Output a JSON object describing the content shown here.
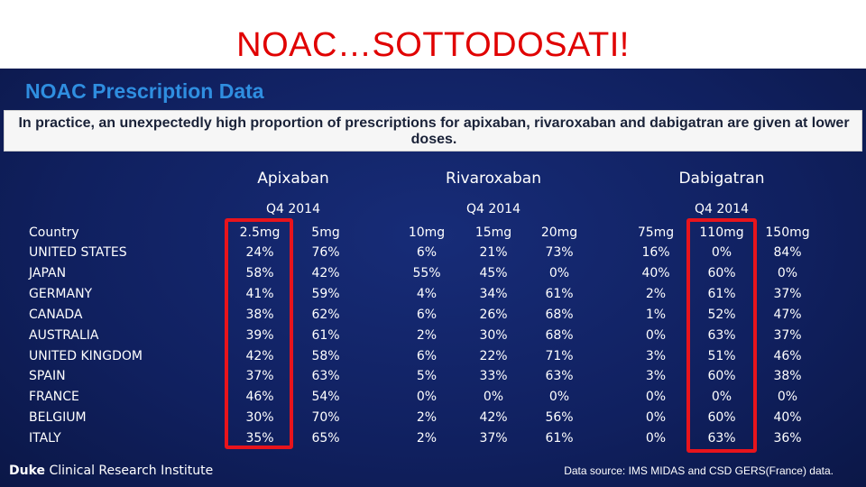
{
  "slide_title": "NOAC…SOTTODOSATI!",
  "panel_title": "NOAC Prescription Data",
  "callout": "In practice, an unexpectedly high proportion of prescriptions for apixaban, rivaroxaban and dabigatran are given at lower doses.",
  "drugs": [
    {
      "name": "Apixaban",
      "period": "Q4 2014",
      "doses": [
        "2.5mg",
        "5mg"
      ]
    },
    {
      "name": "Rivaroxaban",
      "period": "Q4 2014",
      "doses": [
        "10mg",
        "15mg",
        "20mg"
      ]
    },
    {
      "name": "Dabigatran",
      "period": "Q4 2014",
      "doses": [
        "75mg",
        "110mg",
        "150mg"
      ]
    }
  ],
  "country_header": "Country",
  "rows": [
    {
      "country": "UNITED STATES",
      "values": [
        "24%",
        "76%",
        "6%",
        "21%",
        "73%",
        "16%",
        "0%",
        "84%"
      ]
    },
    {
      "country": "JAPAN",
      "values": [
        "58%",
        "42%",
        "55%",
        "45%",
        "0%",
        "40%",
        "60%",
        "0%"
      ]
    },
    {
      "country": "GERMANY",
      "values": [
        "41%",
        "59%",
        "4%",
        "34%",
        "61%",
        "2%",
        "61%",
        "37%"
      ]
    },
    {
      "country": "CANADA",
      "values": [
        "38%",
        "62%",
        "6%",
        "26%",
        "68%",
        "1%",
        "52%",
        "47%"
      ]
    },
    {
      "country": "AUSTRALIA",
      "values": [
        "39%",
        "61%",
        "2%",
        "30%",
        "68%",
        "0%",
        "63%",
        "37%"
      ]
    },
    {
      "country": "UNITED KINGDOM",
      "values": [
        "42%",
        "58%",
        "6%",
        "22%",
        "71%",
        "3%",
        "51%",
        "46%"
      ]
    },
    {
      "country": "SPAIN",
      "values": [
        "37%",
        "63%",
        "5%",
        "33%",
        "63%",
        "3%",
        "60%",
        "38%"
      ]
    },
    {
      "country": "FRANCE",
      "values": [
        "46%",
        "54%",
        "0%",
        "0%",
        "0%",
        "0%",
        "0%",
        "0%"
      ]
    },
    {
      "country": "BELGIUM",
      "values": [
        "30%",
        "70%",
        "2%",
        "42%",
        "56%",
        "0%",
        "60%",
        "40%"
      ]
    },
    {
      "country": "ITALY",
      "values": [
        "35%",
        "65%",
        "2%",
        "37%",
        "61%",
        "0%",
        "63%",
        "36%"
      ]
    }
  ],
  "highlighted_doses": [
    "2.5mg",
    "110mg"
  ],
  "highlight_color": "#e8141c",
  "footer": {
    "brand": "Duke",
    "institute": "Clinical Research Institute"
  },
  "data_source": "Data source: IMS MIDAS and CSD GERS(France) data."
}
